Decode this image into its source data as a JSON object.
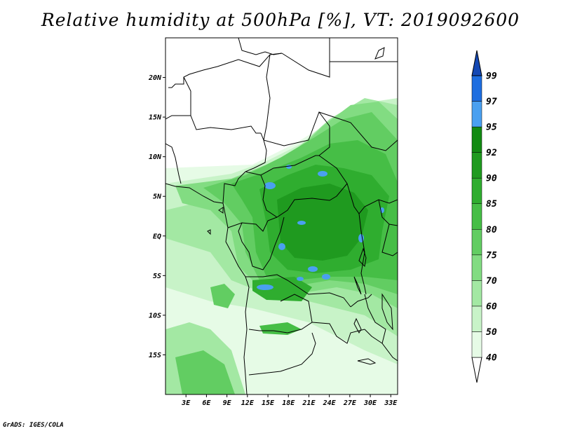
{
  "title": "Relative humidity at 500hPa [%], VT: 2019092600",
  "credit": "GrADS: IGES/COLA",
  "map": {
    "lat_labels": [
      "20N",
      "15N",
      "10N",
      "5N",
      "EQ",
      "5S",
      "10S",
      "15S"
    ],
    "lon_labels": [
      "3E",
      "6E",
      "9E",
      "12E",
      "15E",
      "18E",
      "21E",
      "24E",
      "27E",
      "30E",
      "33E"
    ],
    "lat_values": [
      20,
      15,
      10,
      5,
      0,
      -5,
      -10,
      -15
    ],
    "lon_values": [
      3,
      6,
      9,
      12,
      15,
      18,
      21,
      24,
      27,
      30,
      33
    ],
    "extent": {
      "lon_min": 0,
      "lon_max": 34,
      "lat_min": -20,
      "lat_max": 25
    },
    "variable": "Relative humidity",
    "units": "%",
    "level": "500hPa",
    "valid_time": "2019092600"
  },
  "colorbar": {
    "labels": [
      "40",
      "50",
      "60",
      "70",
      "75",
      "80",
      "85",
      "90",
      "92",
      "95",
      "97",
      "99"
    ],
    "colors": [
      "#ffffff",
      "#e6fbe6",
      "#c8f3c8",
      "#a3e8a3",
      "#82dc82",
      "#62cd62",
      "#46be46",
      "#2fad2f",
      "#1f9a1f",
      "#128a12",
      "#4aa0f0",
      "#1e6ee0",
      "#1448b4"
    ]
  }
}
